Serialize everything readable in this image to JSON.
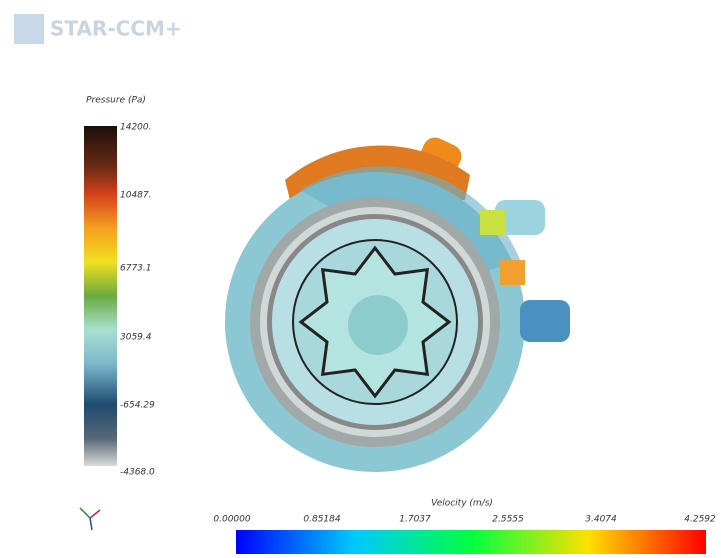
{
  "logo": {
    "text": "STAR-CCM+"
  },
  "pressure_legend": {
    "title": "Pressure (Pa)",
    "labels": [
      "14200.",
      "10487.",
      "6773.1",
      "3059.4",
      "-654.29",
      "-4368.0"
    ]
  },
  "velocity_legend": {
    "title": "Velocity (m/s)",
    "labels": [
      "0.00000",
      "0.85184",
      "1.7037",
      "2.5555",
      "3.4074",
      "4.2592"
    ]
  }
}
